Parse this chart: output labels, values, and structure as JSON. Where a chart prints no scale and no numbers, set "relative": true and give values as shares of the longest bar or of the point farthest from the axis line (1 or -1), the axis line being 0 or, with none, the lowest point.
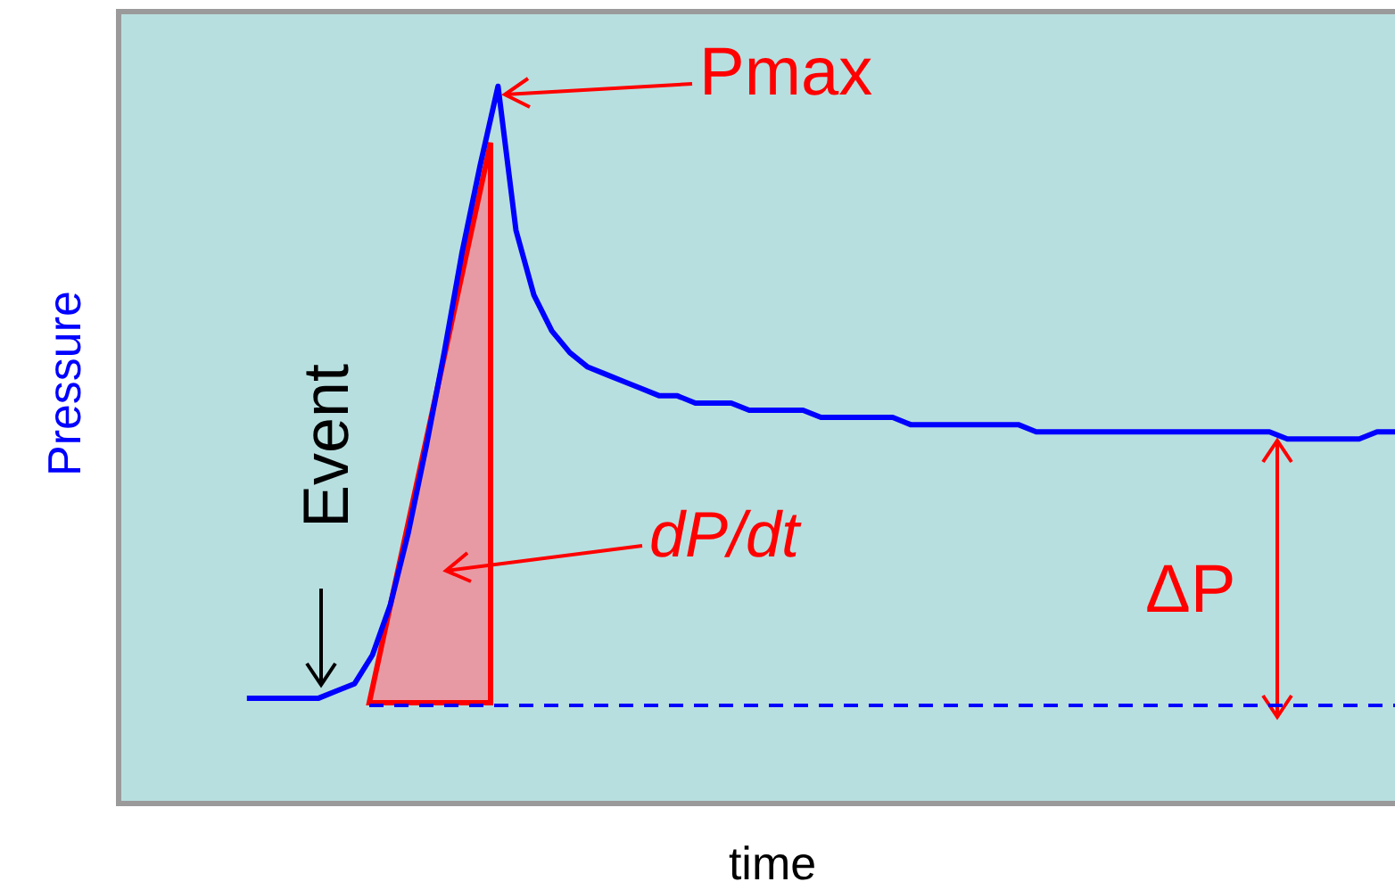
{
  "chart_data": {
    "type": "line",
    "relative": true,
    "xlabel": "time",
    "ylabel": "Pressure",
    "annotations": [
      "Pmax",
      "dP/dt",
      "ΔP",
      "Event"
    ],
    "categories": [
      null,
      null,
      null,
      null,
      null,
      null,
      null,
      null,
      null,
      null,
      null,
      null,
      null,
      null,
      null,
      null,
      null,
      null,
      null,
      null,
      null,
      null,
      null,
      null,
      null,
      null,
      null,
      null,
      null,
      null,
      null,
      null,
      null,
      null,
      null,
      null,
      null,
      null,
      null,
      null,
      null,
      null,
      null,
      null,
      null,
      null,
      null,
      null,
      null,
      null,
      null,
      null,
      null,
      null,
      null,
      null,
      null,
      null,
      null,
      null,
      null,
      null,
      null,
      null,
      null,
      null,
      null,
      null,
      null,
      null,
      null,
      null
    ],
    "series": [
      {
        "color": "#0000ff",
        "values": [
          null,
          null,
          null,
          null,
          null,
          null,
          null,
          0.15,
          0.15,
          0.15,
          0.15,
          0.15,
          0.16,
          0.17,
          0.21,
          0.28,
          0.38,
          0.5,
          0.63,
          0.77,
          0.89,
          1.0,
          0.8,
          0.71,
          0.66,
          0.63,
          0.61,
          0.6,
          0.59,
          0.58,
          0.57,
          0.57,
          0.56,
          0.56,
          0.56,
          0.55,
          0.55,
          0.55,
          0.55,
          0.54,
          0.54,
          0.54,
          0.54,
          0.54,
          0.53,
          0.53,
          0.53,
          0.53,
          0.53,
          0.53,
          0.53,
          0.52,
          0.52,
          0.52,
          0.52,
          0.52,
          0.52,
          0.52,
          0.52,
          0.52,
          0.52,
          0.52,
          0.52,
          0.52,
          0.52,
          0.51,
          0.51,
          0.51,
          0.51,
          0.51,
          0.52,
          0.52
        ]
      }
    ],
    "ref_lines": [
      {
        "axis": "y",
        "value": 0.14,
        "color": "#0000ff",
        "line_style": "dashed"
      }
    ],
    "legend": false,
    "marker": "none",
    "line_style": "solid"
  }
}
